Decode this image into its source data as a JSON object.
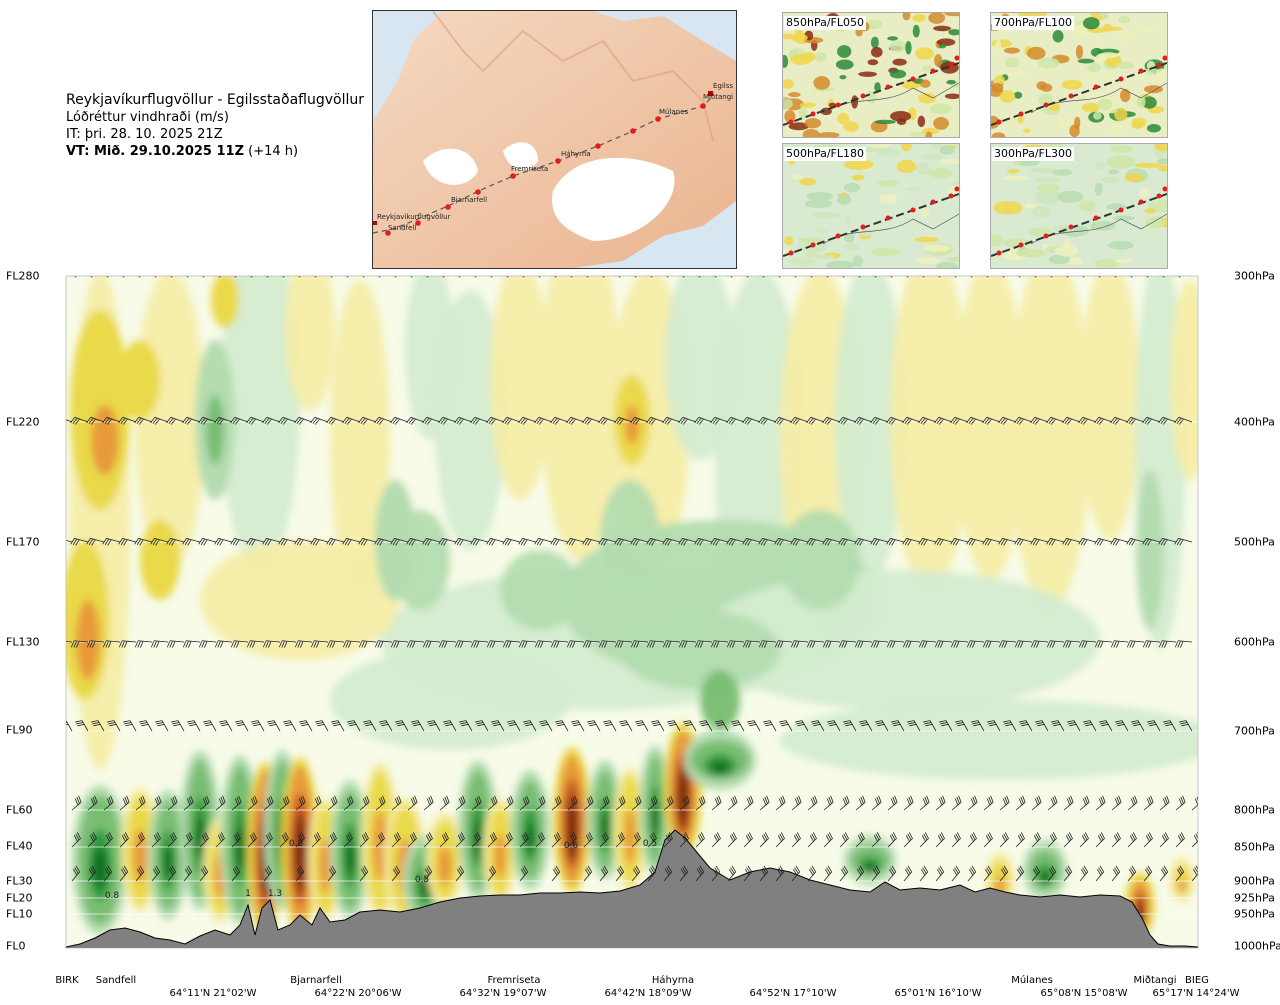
{
  "title": {
    "route": "Reykjavíkurflugvöllur - Egilsstaðaflugvöllur",
    "variable": "Lóðréttur vindhraði (m/s)",
    "issue_time": "IT: þri. 28. 10. 2025 21Z",
    "valid_prefix": "VT: Mið. 29.10.2025 11Z",
    "valid_suffix": " (+14 h)"
  },
  "route_map": {
    "waypoints": [
      {
        "name": "Reykjavíkurflugvöllur"
      },
      {
        "name": "Sandfell"
      },
      {
        "name": "Bjarnarfell"
      },
      {
        "name": "Fremriseta"
      },
      {
        "name": "Háhyrna"
      },
      {
        "name": "Múlanes"
      },
      {
        "name": "Miðtangi"
      },
      {
        "name": "Egilss"
      }
    ]
  },
  "mini_maps": [
    {
      "label": "850hPa/FL050"
    },
    {
      "label": "700hPa/FL100"
    },
    {
      "label": "500hPa/FL180"
    },
    {
      "label": "300hPa/FL300"
    }
  ],
  "chart_data": {
    "type": "heatmap",
    "title": "Reykjavíkurflugvöllur - Egilsstaðaflugvöllur",
    "variable": "Lóðréttur vindhraði (m/s)",
    "y_left_ticks": [
      "FL280",
      "FL220",
      "FL170",
      "FL130",
      "FL90",
      "FL60",
      "FL40",
      "FL30",
      "FL20",
      "FL10",
      "FL0"
    ],
    "y_right_ticks": [
      "300hPa",
      "400hPa",
      "500hPa",
      "600hPa",
      "700hPa",
      "800hPa",
      "850hPa",
      "900hPa",
      "925hPa",
      "950hPa",
      "1000hPa"
    ],
    "x_locations": [
      "BIRK",
      "Sandfell",
      "Bjarnarfell",
      "Fremriseta",
      "Háhyrna",
      "Múlanes",
      "Miðtangi",
      "BIEG"
    ],
    "x_coordinates": [
      "64°11'N 21°02'W",
      "64°22'N 20°06'W",
      "64°32'N 19°07'W",
      "64°42'N 18°09'W",
      "64°52'N 17°10'W",
      "65°01'N 16°10'W",
      "65°08'N 15°08'W",
      "65°17'N 14°24'W"
    ],
    "contour_labels": [
      {
        "text": "0.8"
      },
      {
        "text": "1"
      },
      {
        "text": "1.3"
      },
      {
        "text": "0.8"
      },
      {
        "text": "0.5"
      },
      {
        "text": "0.6"
      },
      {
        "text": "0.5"
      }
    ],
    "colors": {
      "strong_up": "#7a2a0a",
      "up_high": "#c2561a",
      "up_mid": "#e89a3a",
      "up_low": "#ead94a",
      "up_weak": "#f5eda8",
      "neutral": "#f7fbe8",
      "down_weak": "#d4ecd0",
      "down_low": "#b4dcb0",
      "down_mid": "#78bd72",
      "down_high": "#2f9a3a",
      "down_strong": "#0f6a23",
      "terrain": "#808080"
    }
  }
}
